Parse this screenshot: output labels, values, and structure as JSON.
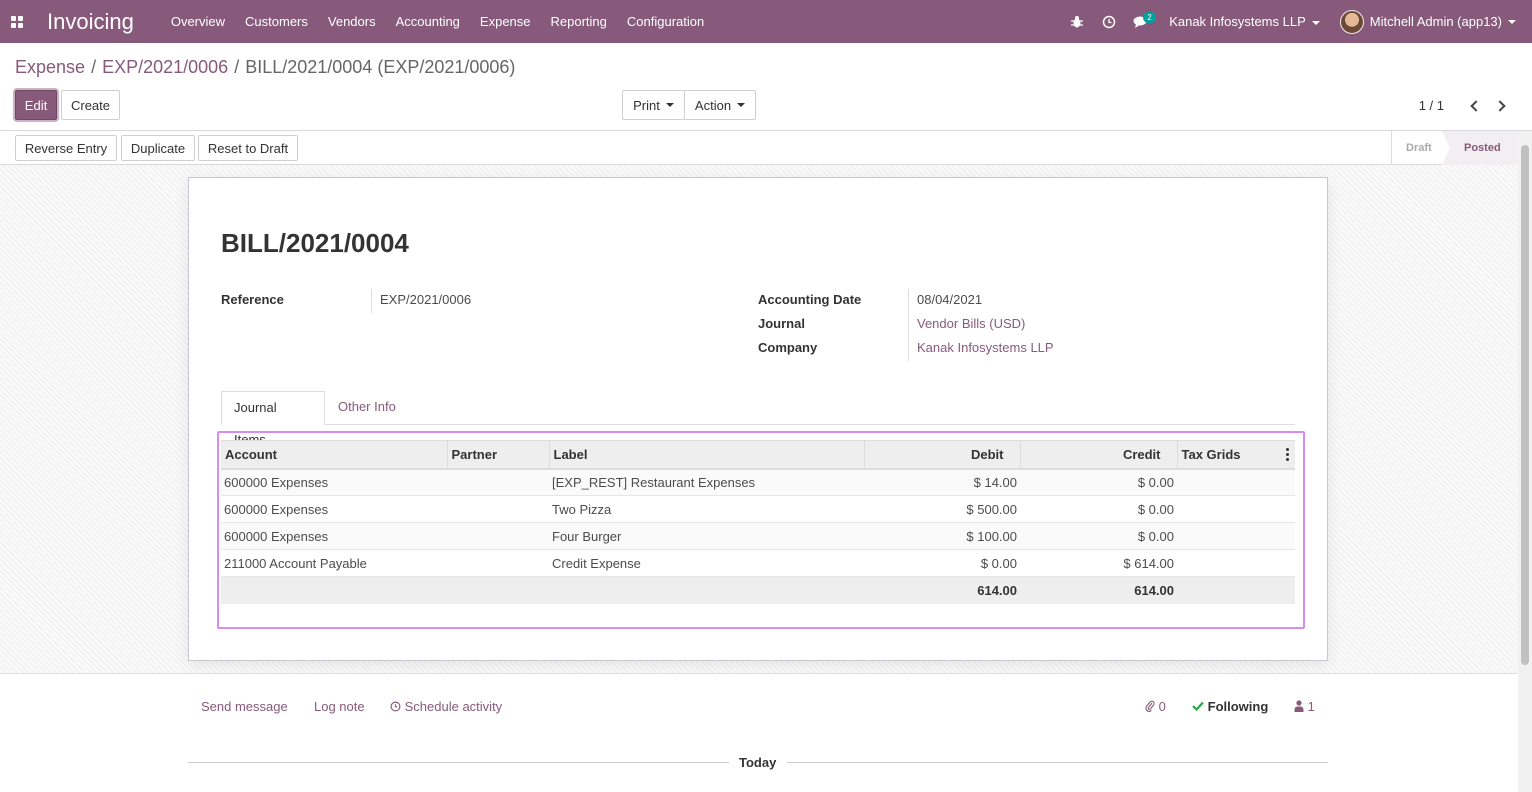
{
  "navbar": {
    "app_name": "Invoicing",
    "menu": [
      "Overview",
      "Customers",
      "Vendors",
      "Accounting",
      "Expense",
      "Reporting",
      "Configuration"
    ],
    "messages_count": "2",
    "company": "Kanak Infosystems LLP",
    "user": "Mitchell Admin (app13)",
    "brand_color": "#875a7b"
  },
  "breadcrumb": {
    "items": [
      "Expense",
      "EXP/2021/0006"
    ],
    "current": "BILL/2021/0004 (EXP/2021/0006)"
  },
  "buttons": {
    "edit": "Edit",
    "create": "Create",
    "print": "Print",
    "action": "Action"
  },
  "pager": {
    "value": "1 / 1"
  },
  "statusbar": {
    "reverse_entry": "Reverse Entry",
    "duplicate": "Duplicate",
    "reset_to_draft": "Reset to Draft",
    "steps": [
      "Draft",
      "Posted"
    ],
    "active_step": "Posted"
  },
  "form": {
    "title": "BILL/2021/0004",
    "reference_label": "Reference",
    "reference_value": "EXP/2021/0006",
    "accounting_date_label": "Accounting Date",
    "accounting_date_value": "08/04/2021",
    "journal_label": "Journal",
    "journal_value": "Vendor Bills (USD)",
    "company_label": "Company",
    "company_value": "Kanak Infosystems LLP"
  },
  "tabs": [
    "Journal Items",
    "Other Info"
  ],
  "journal_items": {
    "columns": [
      "Account",
      "Partner",
      "Label",
      "Debit",
      "Credit",
      "Tax Grids"
    ],
    "rows": [
      {
        "account": "600000 Expenses",
        "partner": "",
        "label": "[EXP_REST] Restaurant Expenses",
        "debit": "$ 14.00",
        "credit": "$ 0.00",
        "tax_grids": ""
      },
      {
        "account": "600000 Expenses",
        "partner": "",
        "label": "Two Pizza",
        "debit": "$ 500.00",
        "credit": "$ 0.00",
        "tax_grids": ""
      },
      {
        "account": "600000 Expenses",
        "partner": "",
        "label": "Four Burger",
        "debit": "$ 100.00",
        "credit": "$ 0.00",
        "tax_grids": ""
      },
      {
        "account": "211000 Account Payable",
        "partner": "",
        "label": "Credit Expense",
        "debit": "$ 0.00",
        "credit": "$ 614.00",
        "tax_grids": ""
      }
    ],
    "total_debit": "614.00",
    "total_credit": "614.00"
  },
  "chatter": {
    "send_message": "Send message",
    "log_note": "Log note",
    "schedule_activity": "Schedule activity",
    "attachments": "0",
    "following": "Following",
    "followers": "1",
    "today": "Today"
  }
}
